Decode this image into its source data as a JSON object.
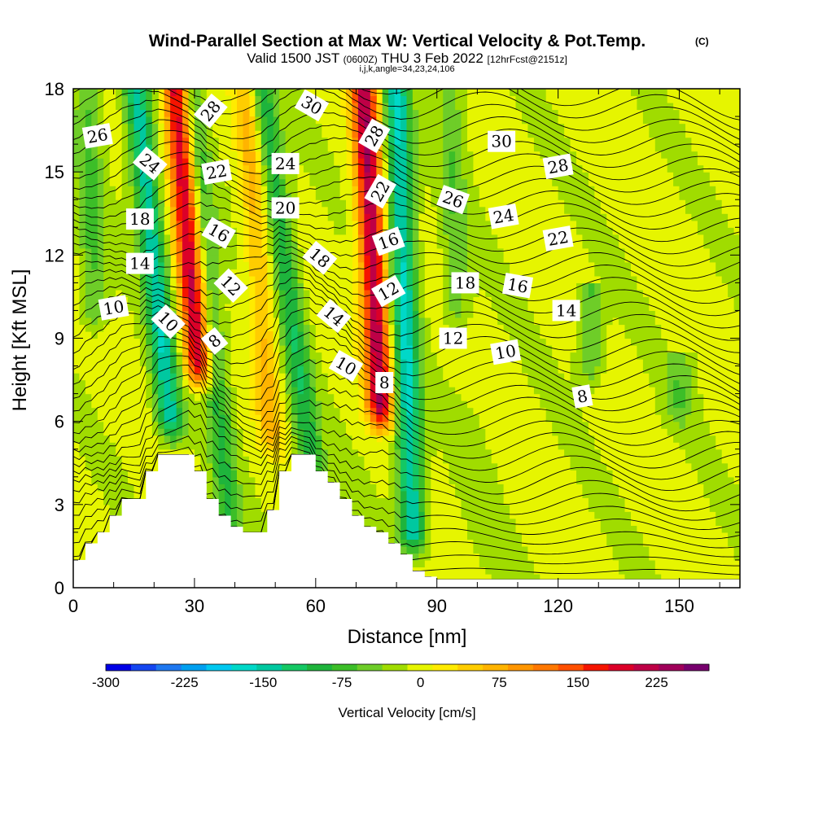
{
  "chart_data": {
    "type": "heatmap",
    "title": "Wind-Parallel Section at Max W: Vertical Velocity & Pot.Temp.",
    "title_mark": "(C)",
    "subtitle_parts": [
      "Valid 1500 JST",
      "(0600Z)",
      "THU 3 Feb 2022",
      "[12hrFcst@2151z]"
    ],
    "subtitle2": "i,j,k,angle=34,23,24,106",
    "xlabel": "Distance [nm]",
    "ylabel": "Height [Kft MSL]",
    "xlim": [
      0,
      165
    ],
    "ylim": [
      0,
      18
    ],
    "x_ticks": [
      0,
      30,
      60,
      90,
      120,
      150
    ],
    "y_ticks": [
      0,
      3,
      6,
      9,
      12,
      15,
      18
    ],
    "colorbar": {
      "label": "Vertical Velocity [cm/s]",
      "min": -300,
      "max": 275,
      "step": 25,
      "tick_values": [
        -300,
        -225,
        -150,
        -75,
        0,
        75,
        150,
        225
      ],
      "colors": [
        "#0000e6",
        "#1446f0",
        "#1e78f0",
        "#00a0f0",
        "#00c8f0",
        "#00d8c8",
        "#00c8a0",
        "#14c864",
        "#1eb43c",
        "#3cbe28",
        "#6ecd28",
        "#a0dc00",
        "#e6f500",
        "#ffeb00",
        "#ffcd00",
        "#ffb400",
        "#ff9600",
        "#ff7800",
        "#ff5000",
        "#f51400",
        "#dc0028",
        "#be0046",
        "#a0005a",
        "#78006e"
      ]
    },
    "velocity_features": [
      {
        "x": 31,
        "bottom": 8.0,
        "top": 18,
        "slope": 0.55,
        "w": 230
      },
      {
        "x": 76,
        "bottom": 6.5,
        "top": 18,
        "slope": 0.35,
        "w": 240
      },
      {
        "x": 24,
        "bottom": 6.0,
        "top": 18,
        "slope": 0.7,
        "w": -150
      },
      {
        "x": 84,
        "bottom": 2.0,
        "top": 18,
        "slope": 0.25,
        "w": -160
      },
      {
        "x": 62,
        "bottom": 1.0,
        "top": 17,
        "slope": 0.9,
        "w": -100
      },
      {
        "x": 39,
        "bottom": 1.5,
        "top": 18,
        "slope": 0.6,
        "w": -80
      },
      {
        "x": 49,
        "bottom": 5.5,
        "top": 17,
        "slope": 0.5,
        "w": 75
      },
      {
        "x": 5,
        "bottom": 10.0,
        "top": 17,
        "slope": 0.2,
        "w": -60
      },
      {
        "x": 95,
        "bottom": 10.0,
        "top": 18,
        "slope": 0.2,
        "w": -50
      },
      {
        "x": 128,
        "bottom": 8.0,
        "top": 10,
        "slope": 0.1,
        "w": -60
      },
      {
        "x": 150,
        "bottom": 6.5,
        "top": 7.5,
        "slope": 0.0,
        "w": -50
      }
    ],
    "terrain": [
      [
        0,
        1.0
      ],
      [
        3,
        1.0
      ],
      [
        3,
        1.6
      ],
      [
        6,
        1.6
      ],
      [
        6,
        2.0
      ],
      [
        9,
        2.0
      ],
      [
        9,
        2.6
      ],
      [
        12,
        2.6
      ],
      [
        12,
        3.2
      ],
      [
        15,
        3.2
      ],
      [
        15,
        3.2
      ],
      [
        18,
        3.2
      ],
      [
        18,
        4.2
      ],
      [
        21,
        4.2
      ],
      [
        21,
        4.8
      ],
      [
        24,
        4.8
      ],
      [
        24,
        4.8
      ],
      [
        27,
        4.8
      ],
      [
        27,
        4.8
      ],
      [
        30,
        4.8
      ],
      [
        30,
        4.2
      ],
      [
        33,
        4.2
      ],
      [
        33,
        3.2
      ],
      [
        36,
        3.2
      ],
      [
        36,
        2.6
      ],
      [
        39,
        2.6
      ],
      [
        39,
        2.2
      ],
      [
        42,
        2.2
      ],
      [
        42,
        2.0
      ],
      [
        45,
        2.0
      ],
      [
        45,
        2.0
      ],
      [
        48,
        2.0
      ],
      [
        48,
        2.8
      ],
      [
        51,
        2.8
      ],
      [
        51,
        4.2
      ],
      [
        54,
        4.2
      ],
      [
        54,
        4.8
      ],
      [
        57,
        4.8
      ],
      [
        57,
        4.8
      ],
      [
        60,
        4.8
      ],
      [
        60,
        4.2
      ],
      [
        63,
        4.2
      ],
      [
        63,
        3.8
      ],
      [
        66,
        3.8
      ],
      [
        66,
        3.2
      ],
      [
        69,
        3.2
      ],
      [
        69,
        2.6
      ],
      [
        72,
        2.6
      ],
      [
        72,
        2.2
      ],
      [
        75,
        2.2
      ],
      [
        75,
        2.0
      ],
      [
        78,
        2.0
      ],
      [
        78,
        1.6
      ],
      [
        81,
        1.6
      ],
      [
        81,
        1.2
      ],
      [
        84,
        1.2
      ],
      [
        84,
        0.6
      ],
      [
        87,
        0.6
      ],
      [
        87,
        0.4
      ],
      [
        90,
        0.4
      ],
      [
        90,
        0.3
      ],
      [
        165,
        0.3
      ]
    ],
    "contour_labels": [
      {
        "text": "26",
        "x": 6,
        "y": 16.3,
        "rot": -10
      },
      {
        "text": "24",
        "x": 19,
        "y": 15.3,
        "rot": 40
      },
      {
        "text": "18",
        "x": 16.5,
        "y": 13.3,
        "rot": 0
      },
      {
        "text": "14",
        "x": 16.5,
        "y": 11.7,
        "rot": 0
      },
      {
        "text": "10",
        "x": 10,
        "y": 10.1,
        "rot": -10
      },
      {
        "text": "10",
        "x": 23.5,
        "y": 9.6,
        "rot": 45
      },
      {
        "text": "28",
        "x": 34,
        "y": 17.2,
        "rot": -50
      },
      {
        "text": "22",
        "x": 35.5,
        "y": 15.0,
        "rot": -10
      },
      {
        "text": "16",
        "x": 36,
        "y": 12.8,
        "rot": 30
      },
      {
        "text": "12",
        "x": 39,
        "y": 10.9,
        "rot": 45
      },
      {
        "text": "8",
        "x": 35,
        "y": 8.9,
        "rot": -40
      },
      {
        "text": "30",
        "x": 59,
        "y": 17.4,
        "rot": 30
      },
      {
        "text": "24",
        "x": 52.5,
        "y": 15.3,
        "rot": 0
      },
      {
        "text": "20",
        "x": 52.5,
        "y": 13.7,
        "rot": 0
      },
      {
        "text": "18",
        "x": 61,
        "y": 11.9,
        "rot": 40
      },
      {
        "text": "14",
        "x": 64.5,
        "y": 9.8,
        "rot": 40
      },
      {
        "text": "10",
        "x": 67.5,
        "y": 8.0,
        "rot": 30
      },
      {
        "text": "28",
        "x": 74.5,
        "y": 16.3,
        "rot": -60
      },
      {
        "text": "22",
        "x": 76,
        "y": 14.3,
        "rot": -60
      },
      {
        "text": "16",
        "x": 78,
        "y": 12.5,
        "rot": -20
      },
      {
        "text": "12",
        "x": 78,
        "y": 10.7,
        "rot": -30
      },
      {
        "text": "8",
        "x": 77,
        "y": 7.4,
        "rot": 0
      },
      {
        "text": "30",
        "x": 106,
        "y": 16.1,
        "rot": 0
      },
      {
        "text": "28",
        "x": 120,
        "y": 15.2,
        "rot": -10
      },
      {
        "text": "26",
        "x": 94,
        "y": 14.0,
        "rot": 20
      },
      {
        "text": "24",
        "x": 106.5,
        "y": 13.4,
        "rot": -10
      },
      {
        "text": "22",
        "x": 120,
        "y": 12.6,
        "rot": -10
      },
      {
        "text": "18",
        "x": 97,
        "y": 11.0,
        "rot": 0
      },
      {
        "text": "16",
        "x": 110,
        "y": 10.9,
        "rot": 10
      },
      {
        "text": "14",
        "x": 122,
        "y": 10.0,
        "rot": 0
      },
      {
        "text": "12",
        "x": 94,
        "y": 9.0,
        "rot": 0
      },
      {
        "text": "10",
        "x": 107,
        "y": 8.5,
        "rot": -10
      },
      {
        "text": "8",
        "x": 126,
        "y": 6.9,
        "rot": -10
      }
    ]
  }
}
